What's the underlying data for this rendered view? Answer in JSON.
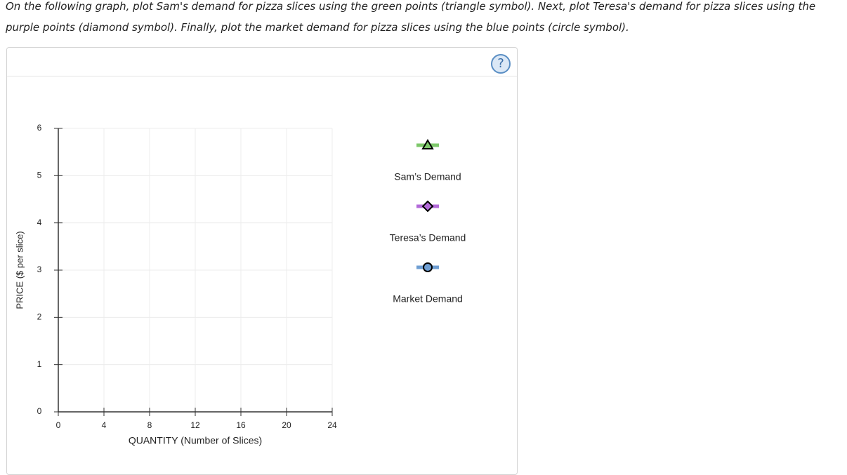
{
  "instructions": "On the following graph, plot Sam's demand for pizza slices using the green points (triangle symbol). Next, plot Teresa's demand for pizza slices using the purple points (diamond symbol). Finally, plot the market demand for pizza slices using the blue points (circle symbol).",
  "help": "?",
  "chart_data": {
    "type": "scatter",
    "xlabel": "QUANTITY (Number of Slices)",
    "ylabel": "PRICE ($ per slice)",
    "xlim": [
      0,
      24
    ],
    "ylim": [
      0,
      6
    ],
    "xticks": [
      0,
      4,
      8,
      12,
      16,
      20,
      24
    ],
    "yticks": [
      0,
      1,
      2,
      3,
      4,
      5,
      6
    ],
    "grid": true,
    "series": [
      {
        "name": "Sam’s Demand",
        "color": "#7dc86a",
        "marker": "triangle",
        "x": [],
        "values": []
      },
      {
        "name": "Teresa’s Demand",
        "color": "#b36ad9",
        "marker": "diamond",
        "x": [],
        "values": []
      },
      {
        "name": "Market Demand",
        "color": "#6f9fd3",
        "marker": "circle",
        "x": [],
        "values": []
      }
    ]
  }
}
